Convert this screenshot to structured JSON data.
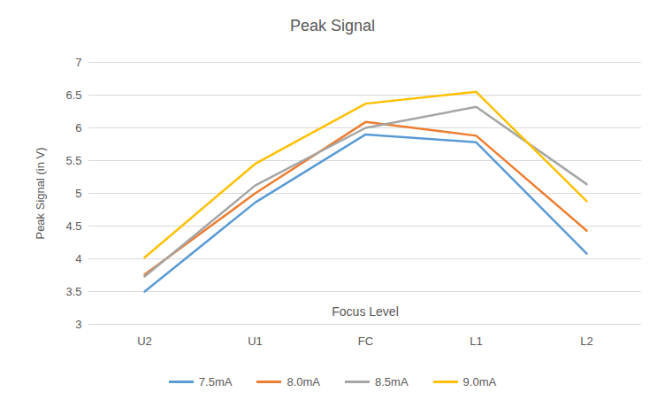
{
  "chart_data": {
    "type": "line",
    "title": "Peak Signal",
    "x_label": "Focus Level",
    "y_label": "Peak Signal (in V)",
    "categories": [
      "U2",
      "U1",
      "FC",
      "L1",
      "L2"
    ],
    "series": [
      {
        "name": "7.5mA",
        "color": "#5b9bd5",
        "values": [
          3.5,
          4.86,
          5.9,
          5.78,
          4.08
        ]
      },
      {
        "name": "8.0mA",
        "color": "#ed7d31",
        "values": [
          3.76,
          5.0,
          6.09,
          5.88,
          4.43
        ]
      },
      {
        "name": "8.5mA",
        "color": "#a5a5a5",
        "values": [
          3.73,
          5.12,
          6.0,
          6.32,
          5.14
        ]
      },
      {
        "name": "9.0mA",
        "color": "#ffc000",
        "values": [
          4.02,
          5.45,
          6.37,
          6.55,
          4.88
        ]
      }
    ],
    "ylim": [
      3,
      7
    ],
    "yticks": [
      3,
      3.5,
      4,
      4.5,
      5,
      5.5,
      6,
      6.5,
      7
    ],
    "grid": true,
    "legend": "bottom"
  }
}
